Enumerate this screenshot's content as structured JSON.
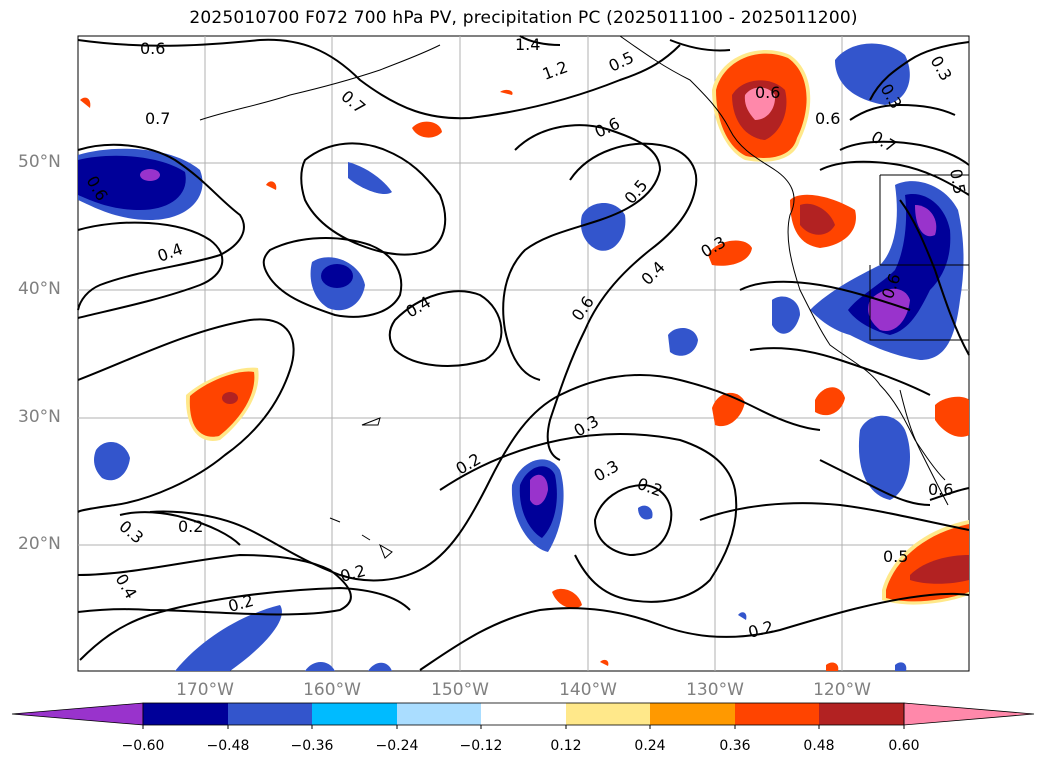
{
  "title": "2025010700 F072 700 hPa PV, precipitation PC (2025011100 - 2025011200)",
  "latitude_labels": [
    "50°N",
    "40°N",
    "30°N",
    "20°N"
  ],
  "longitude_labels": [
    "170°W",
    "160°W",
    "150°W",
    "140°W",
    "130°W",
    "120°W"
  ],
  "colorbar": {
    "tick_labels": [
      "−0.60",
      "−0.48",
      "−0.36",
      "−0.24",
      "−0.12",
      "0.12",
      "0.24",
      "0.36",
      "0.48",
      "0.60"
    ],
    "colors": [
      "#9933cc",
      "#000099",
      "#3355cc",
      "#00bbff",
      "#aaddff",
      "#ffffff",
      "#ffe88a",
      "#ff9900",
      "#ff4400",
      "#b22222",
      "#ff88aa"
    ]
  },
  "contour_labels": [
    "0.6",
    "0.7",
    "0.4",
    "0.4",
    "0.4",
    "0.3",
    "0.2",
    "0.2",
    "0.2",
    "0.2",
    "0.3",
    "0.3",
    "0.2",
    "0.2",
    "0.4",
    "0.6",
    "0.5",
    "0.6",
    "1.2",
    "1.4",
    "0.3",
    "0.5",
    "0.6",
    "0.6",
    "0.7",
    "0.5",
    "0.3",
    "0.6",
    "0.5",
    "0.6",
    "0.7",
    "0.6",
    "0.3"
  ],
  "colors": {
    "gridline": "#b0b0b0",
    "contour": "#000000",
    "axis_label": "#808080"
  }
}
